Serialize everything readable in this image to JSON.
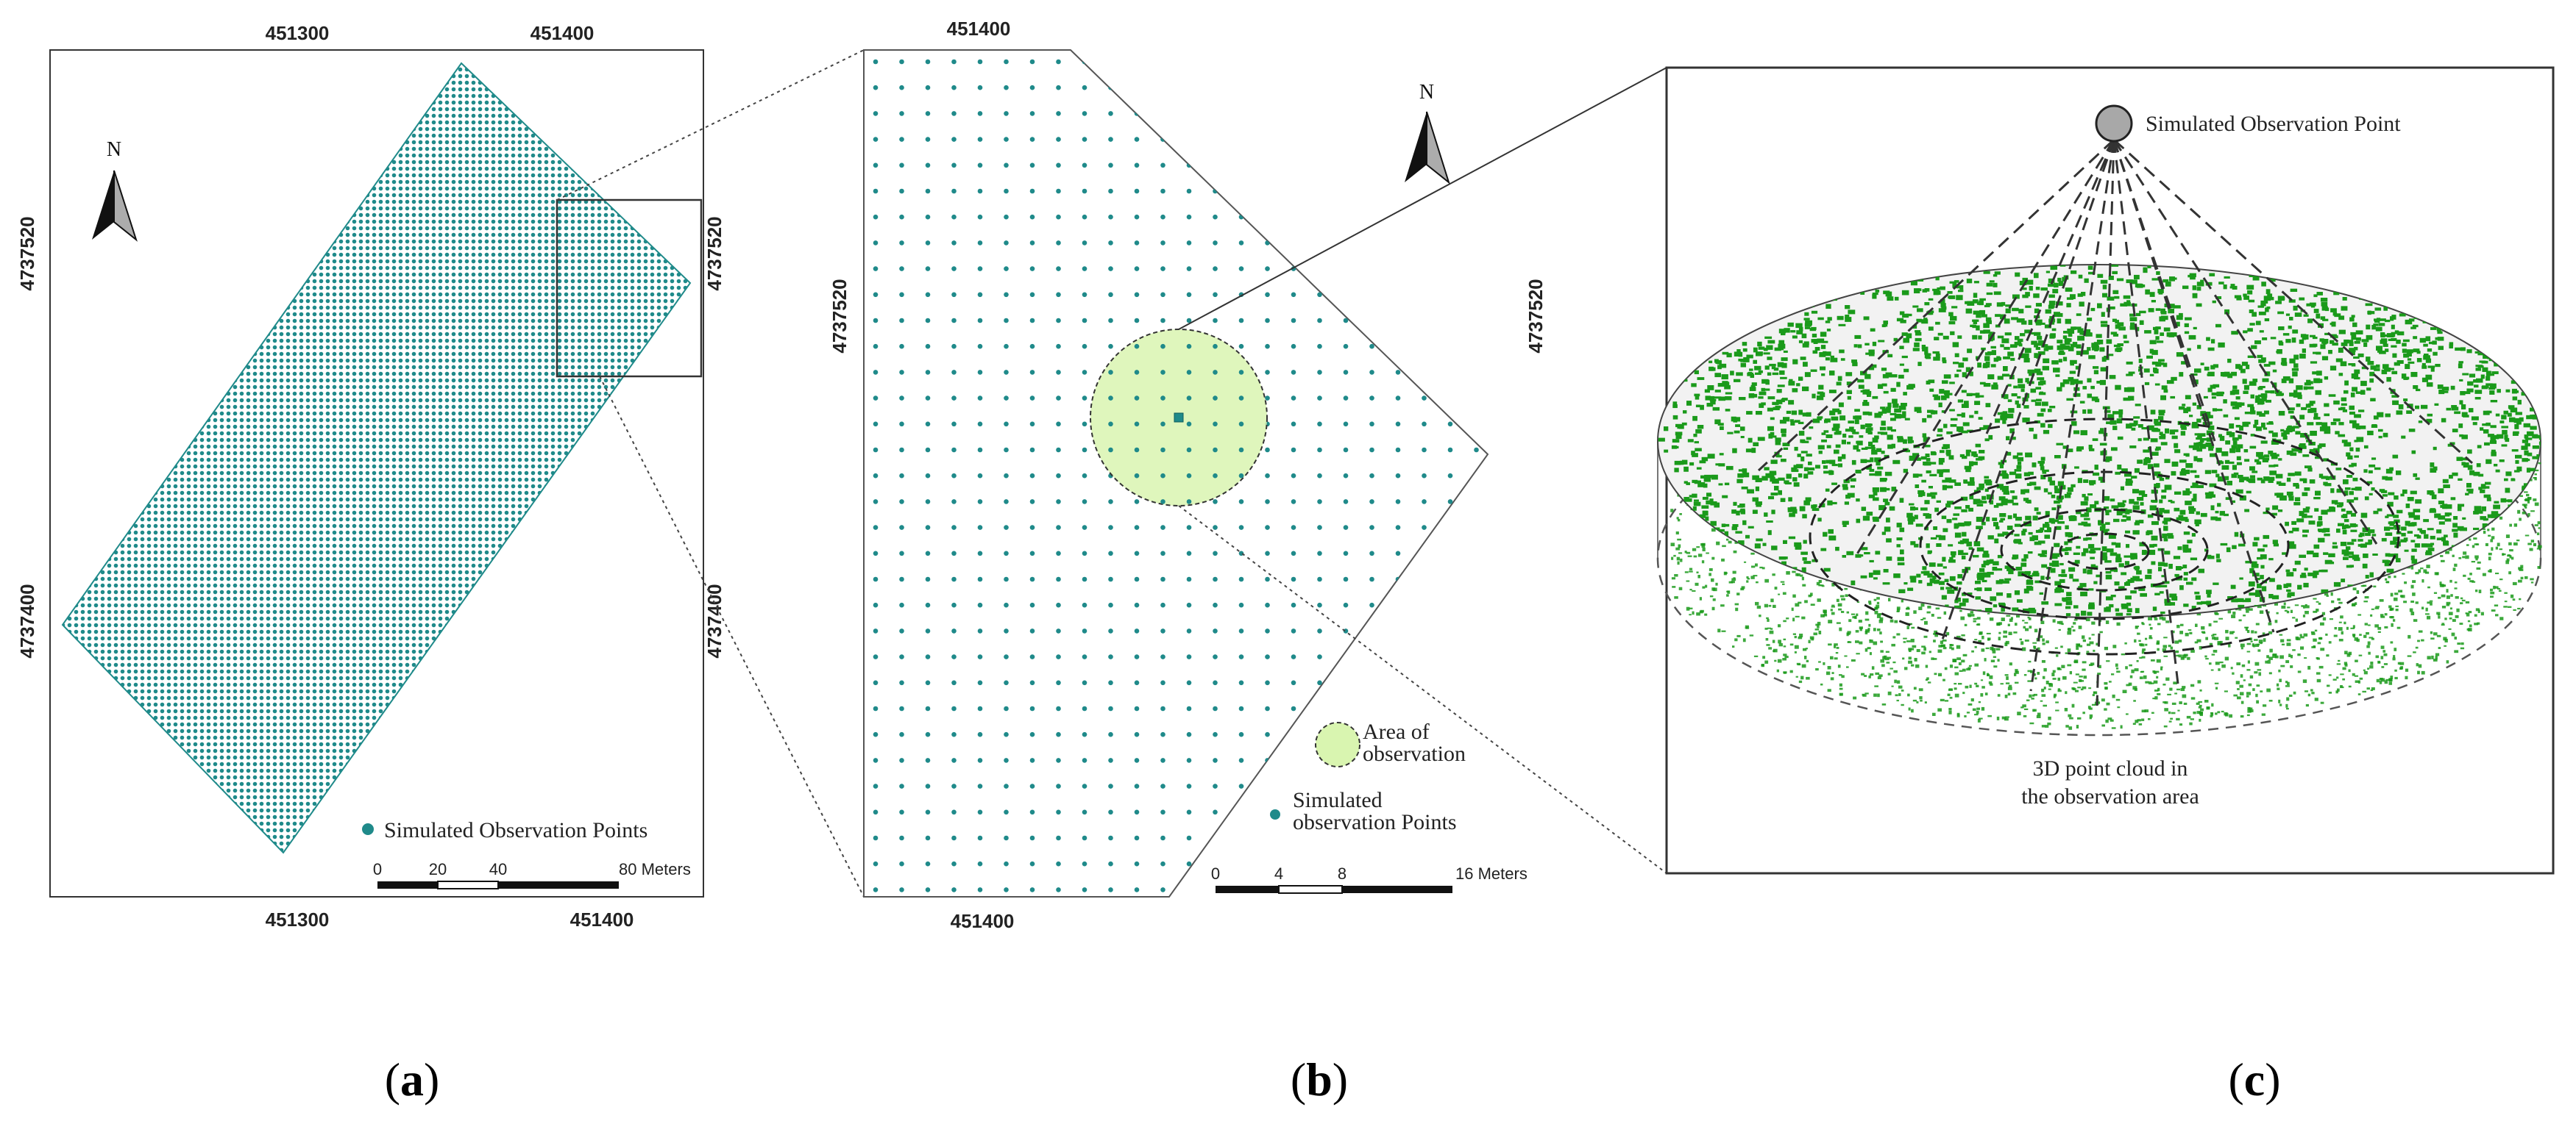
{
  "panel_a": {
    "top_ticks": [
      "451300",
      "451400"
    ],
    "bottom_ticks": [
      "451300",
      "451400"
    ],
    "left_ticks": [
      "4737520",
      "4737400"
    ],
    "right_ticks": [
      "4737520",
      "4737400"
    ],
    "north_label": "N",
    "legend_label": "Simulated Observation Points",
    "scale_labels": [
      "0",
      "20",
      "40",
      "80 Meters"
    ],
    "point_color": "#1f8a8a"
  },
  "panel_b": {
    "top_tick": "451400",
    "bottom_tick": "451400",
    "left_tick": "4737520",
    "right_tick": "4737520",
    "north_label": "N",
    "legend_area_line1": "Area of",
    "legend_area_line2": "observation",
    "legend_points_line1": "Simulated",
    "legend_points_line2": "observation Points",
    "scale_labels": [
      "0",
      "4",
      "8",
      "16 Meters"
    ],
    "point_color": "#1f8a8a",
    "area_color": "#d9f5b0"
  },
  "panel_c": {
    "observer_label": "Simulated Observation Point",
    "cloud_label_line1": "3D point cloud in",
    "cloud_label_line2": "the observation area",
    "cloud_color": "#1a9a1a"
  },
  "captions": {
    "a_open": "(",
    "a_letter": "a",
    "a_close": ")",
    "b_open": "(",
    "b_letter": "b",
    "b_close": ")",
    "c_open": "(",
    "c_letter": "c",
    "c_close": ")"
  }
}
